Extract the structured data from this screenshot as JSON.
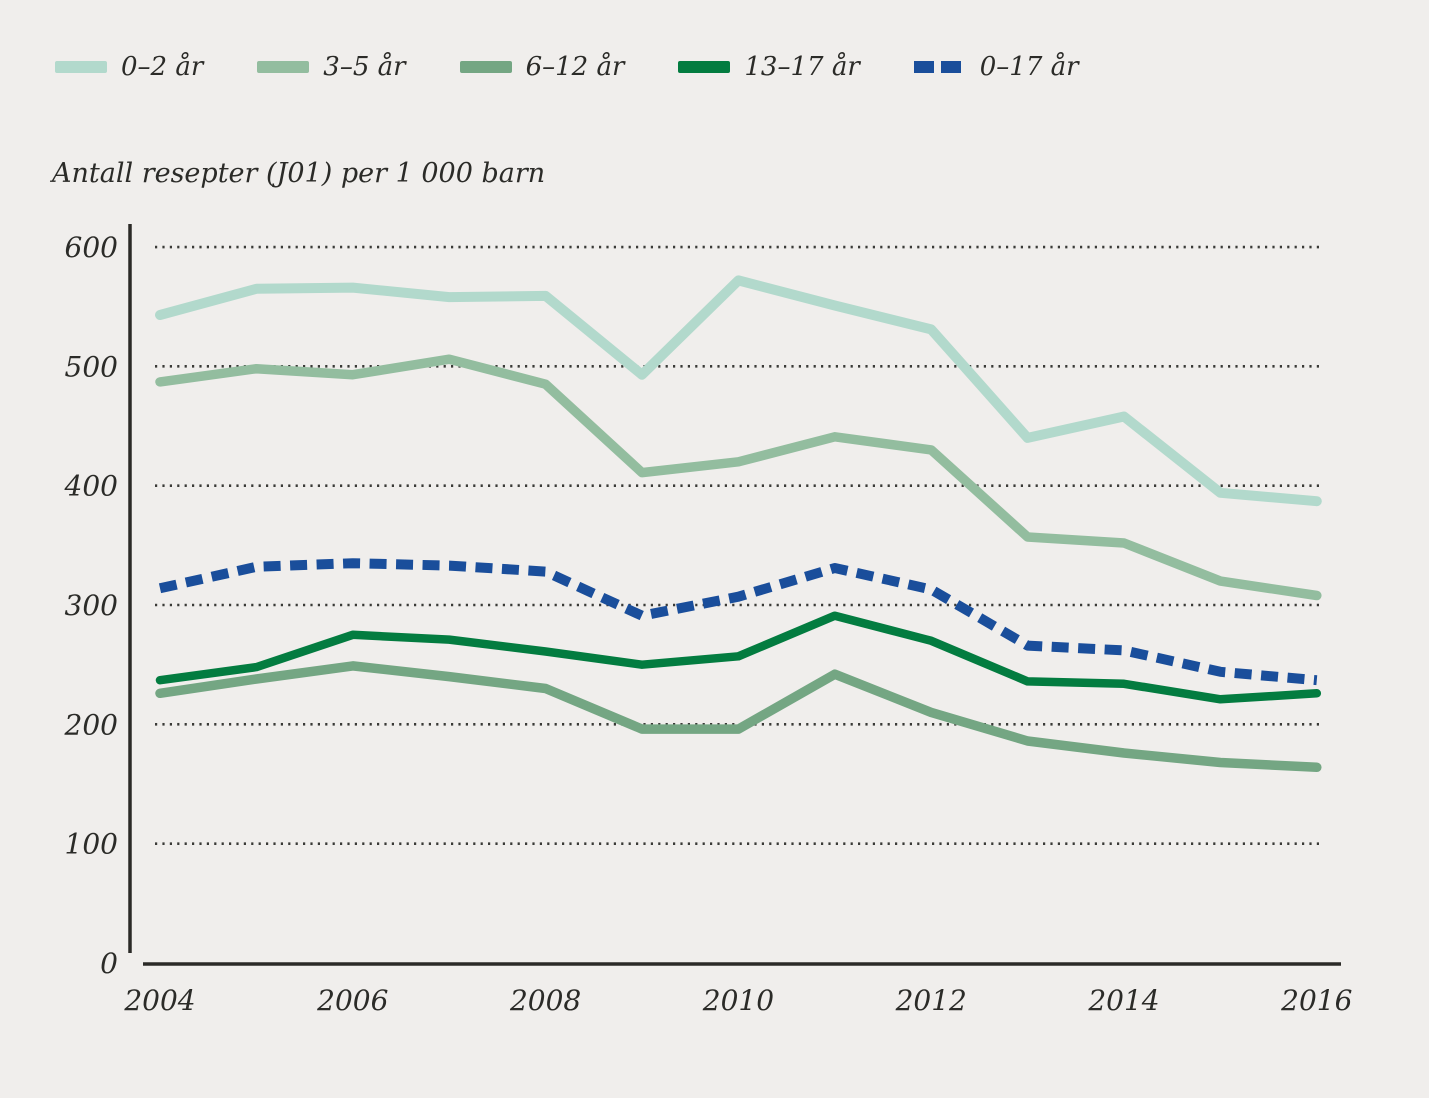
{
  "page": {
    "background_color": "#f0eeec",
    "text_color": "#2b2b28"
  },
  "legend": {
    "items": [
      {
        "label": "0–2 år",
        "color": "#b2d9cc",
        "dashed": false
      },
      {
        "label": "3–5 år",
        "color": "#93bd9f",
        "dashed": false
      },
      {
        "label": "6–12 år",
        "color": "#74a683",
        "dashed": false
      },
      {
        "label": "13–17 år",
        "color": "#037c40",
        "dashed": false
      },
      {
        "label": "0–17 år",
        "color": "#1a4e9b",
        "dashed": true
      }
    ]
  },
  "chart_data": {
    "type": "line",
    "title": "Antall resepter (J01) per 1 000 barn",
    "xlabel": "",
    "ylabel": "Antall resepter (J01) per 1 000 barn",
    "x": [
      2004,
      2005,
      2006,
      2007,
      2008,
      2009,
      2010,
      2011,
      2012,
      2013,
      2014,
      2015,
      2016
    ],
    "x_tick_labels": [
      "2004",
      "2006",
      "2008",
      "2010",
      "2012",
      "2014",
      "2016"
    ],
    "ylim": [
      0,
      600
    ],
    "y_ticks": [
      0,
      100,
      200,
      300,
      400,
      500,
      600
    ],
    "grid": "horizontal dotted lines at each y tick",
    "legend_position": "top-left",
    "series": [
      {
        "name": "0–2 år",
        "color": "#b2d9cc",
        "dashed": false,
        "width": 10,
        "values": [
          543,
          565,
          566,
          558,
          559,
          493,
          572,
          551,
          531,
          440,
          458,
          394,
          387
        ]
      },
      {
        "name": "3–5 år",
        "color": "#93bd9f",
        "dashed": false,
        "width": 9.5,
        "values": [
          487,
          498,
          493,
          506,
          485,
          411,
          420,
          441,
          430,
          357,
          352,
          320,
          308
        ]
      },
      {
        "name": "6–12 år",
        "color": "#74a683",
        "dashed": false,
        "width": 9.5,
        "values": [
          226,
          238,
          249,
          240,
          230,
          196,
          196,
          242,
          210,
          186,
          176,
          168,
          164
        ]
      },
      {
        "name": "13–17 år",
        "color": "#037c40",
        "dashed": false,
        "width": 8.5,
        "values": [
          237,
          248,
          275,
          271,
          261,
          250,
          257,
          291,
          270,
          236,
          234,
          221,
          226
        ]
      },
      {
        "name": "0–17 år",
        "color": "#1a4e9b",
        "dashed": true,
        "width": 10,
        "values": [
          314,
          332,
          335,
          333,
          328,
          291,
          307,
          331,
          313,
          266,
          262,
          244,
          237
        ]
      }
    ]
  },
  "axis_style": {
    "axis_color": "#2b2a27",
    "grid_color": "#3a3a37"
  }
}
